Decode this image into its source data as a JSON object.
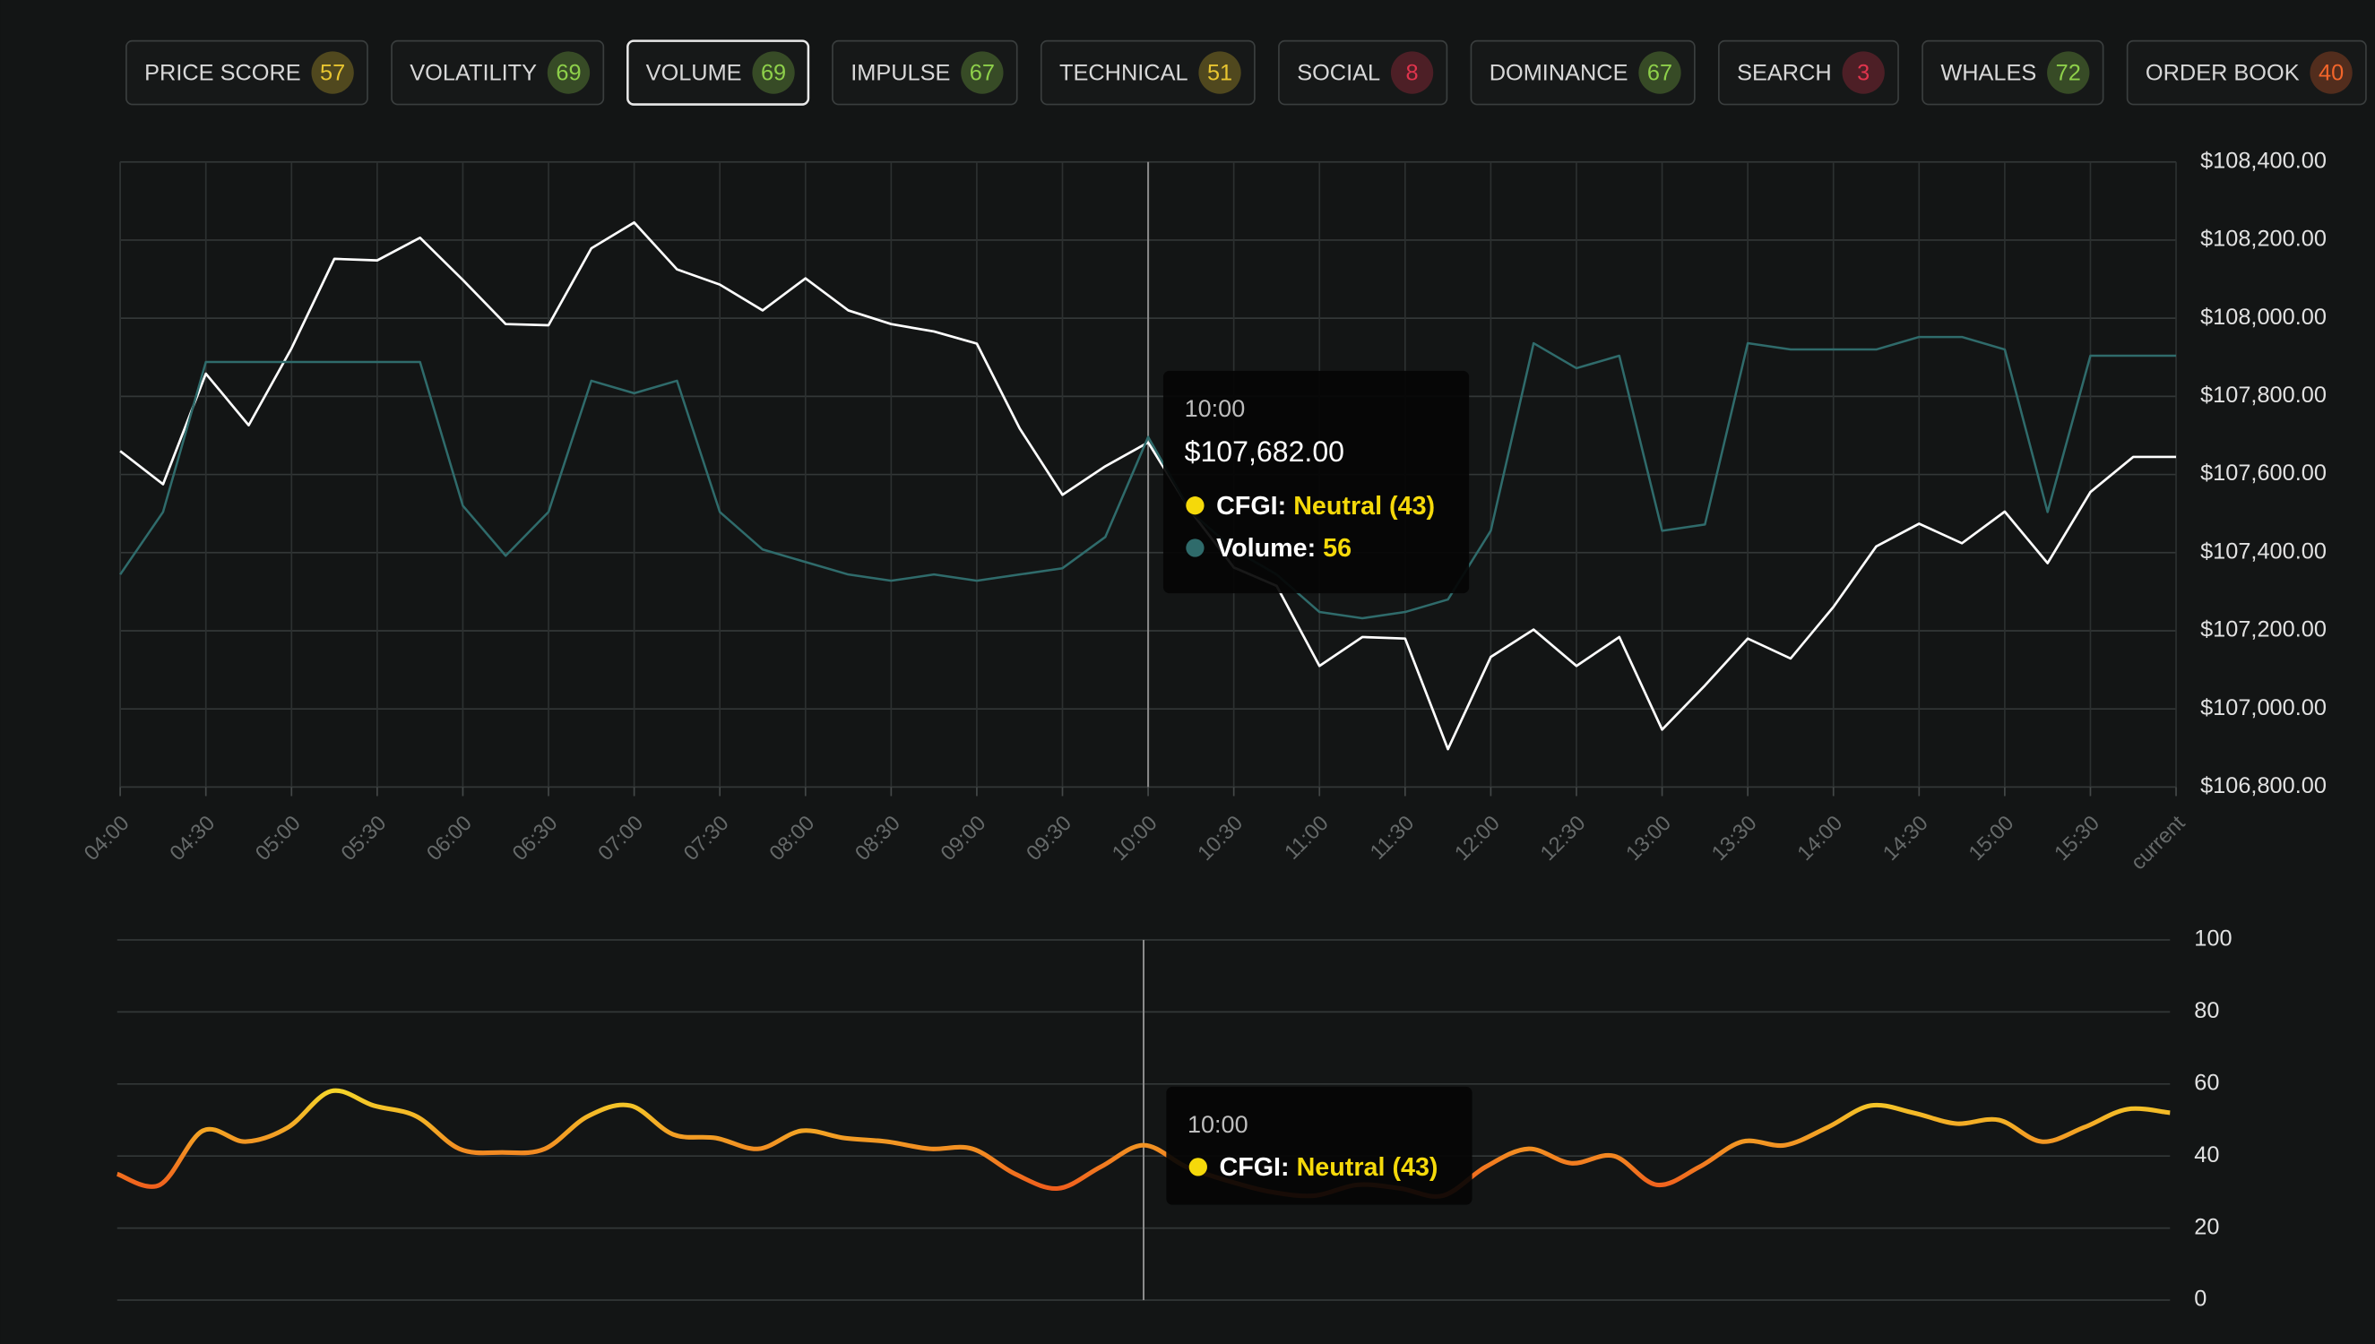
{
  "tabs": [
    {
      "label": "PRICE SCORE",
      "score": 57,
      "color": "#e8c530",
      "active": false
    },
    {
      "label": "VOLATILITY",
      "score": 69,
      "color": "#8ed04a",
      "active": false
    },
    {
      "label": "VOLUME",
      "score": 69,
      "color": "#8ed04a",
      "active": true
    },
    {
      "label": "IMPULSE",
      "score": 67,
      "color": "#8ed04a",
      "active": false
    },
    {
      "label": "TECHNICAL",
      "score": 51,
      "color": "#e8c530",
      "active": false
    },
    {
      "label": "SOCIAL",
      "score": 8,
      "color": "#e0344d",
      "active": false
    },
    {
      "label": "DOMINANCE",
      "score": 67,
      "color": "#8ed04a",
      "active": false
    },
    {
      "label": "SEARCH",
      "score": 3,
      "color": "#e0344d",
      "active": false
    },
    {
      "label": "WHALES",
      "score": 72,
      "color": "#8ed04a",
      "active": false
    },
    {
      "label": "ORDER BOOK",
      "score": 40,
      "color": "#f2652a",
      "active": false
    }
  ],
  "chart_data": [
    {
      "type": "line",
      "categories": [
        "04:00",
        null,
        "04:30",
        null,
        "05:00",
        null,
        "05:30",
        null,
        "06:00",
        null,
        "06:30",
        null,
        "07:00",
        null,
        "07:30",
        null,
        "08:00",
        null,
        "08:30",
        null,
        "09:00",
        null,
        "09:30",
        null,
        "10:00",
        null,
        "10:30",
        null,
        "11:00",
        null,
        "11:30",
        null,
        "12:00",
        null,
        "12:30",
        null,
        "13:00",
        null,
        "13:30",
        null,
        "14:00",
        null,
        "14:30",
        null,
        "15:00",
        null,
        "15:30",
        null,
        "current"
      ],
      "series": [
        {
          "color": "#ffffff",
          "values": [
            107660,
            107575,
            107858,
            107726,
            107923,
            108152,
            108148,
            108206,
            108098,
            107985,
            107982,
            108179,
            108245,
            108125,
            108086,
            108020,
            108102,
            108020,
            107985,
            107966,
            107935,
            107718,
            107548,
            107621,
            107682,
            107505,
            107362,
            107315,
            107110,
            107184,
            107180,
            106897,
            107133,
            107203,
            107110,
            107184,
            106947,
            107060,
            107180,
            107129,
            107261,
            107416,
            107474,
            107424,
            107505,
            107373,
            107555,
            107645,
            107645
          ]
        },
        {
          "color": "#2f6b6b",
          "axis": "y2",
          "values": [
            34,
            44,
            68,
            68,
            68,
            68,
            68,
            68,
            45,
            37,
            44,
            65,
            63,
            65,
            44,
            38,
            36,
            34,
            33,
            34,
            33,
            34,
            35,
            40,
            56,
            44,
            38,
            34,
            28,
            27,
            28,
            30,
            41,
            71,
            67,
            69,
            41,
            42,
            71,
            70,
            70,
            70,
            72,
            72,
            70,
            44,
            69,
            69,
            69
          ]
        }
      ],
      "ylim": [
        106800,
        108400
      ],
      "yticks": [
        {
          "value": 106800,
          "label": "$106,800.00"
        },
        {
          "value": 107000,
          "label": "$107,000.00"
        },
        {
          "value": 107200,
          "label": "$107,200.00"
        },
        {
          "value": 107400,
          "label": "$107,400.00"
        },
        {
          "value": 107600,
          "label": "$107,600.00"
        },
        {
          "value": 107800,
          "label": "$107,800.00"
        },
        {
          "value": 108000,
          "label": "$108,000.00"
        },
        {
          "value": 108200,
          "label": "$108,200.00"
        },
        {
          "value": 108400,
          "label": "$108,400.00"
        }
      ],
      "y2lim": [
        0,
        100
      ],
      "grid": true,
      "tooltip": {
        "title": "10:00",
        "value_label": "$107,682.00",
        "items": [
          {
            "name": "CFGI:",
            "value_label": "Neutral (43)",
            "color": "#f5d90a"
          },
          {
            "name": "Volume:",
            "value_label": "56",
            "color": "#2f6b6b"
          }
        ]
      }
    },
    {
      "type": "line",
      "series": [
        {
          "color": "#f5d42a",
          "low_color": "#f0561c",
          "values": [
            35,
            32,
            47,
            44,
            48,
            58,
            54,
            51,
            42,
            41,
            42,
            51,
            54,
            46,
            45,
            42,
            47,
            45,
            44,
            42,
            42,
            35,
            31,
            37,
            43,
            37,
            33,
            30,
            29,
            32,
            31,
            29,
            37,
            42,
            38,
            40,
            32,
            37,
            44,
            43,
            48,
            54,
            52,
            49,
            50,
            44,
            48,
            53,
            52
          ]
        }
      ],
      "ylim": [
        0,
        100
      ],
      "yticks": [
        0,
        20,
        40,
        60,
        80,
        100
      ],
      "grid": true,
      "tooltip": {
        "title": "10:00",
        "items": [
          {
            "name": "CFGI:",
            "value_label": "Neutral (43)",
            "color": "#f5d90a"
          }
        ]
      }
    }
  ]
}
